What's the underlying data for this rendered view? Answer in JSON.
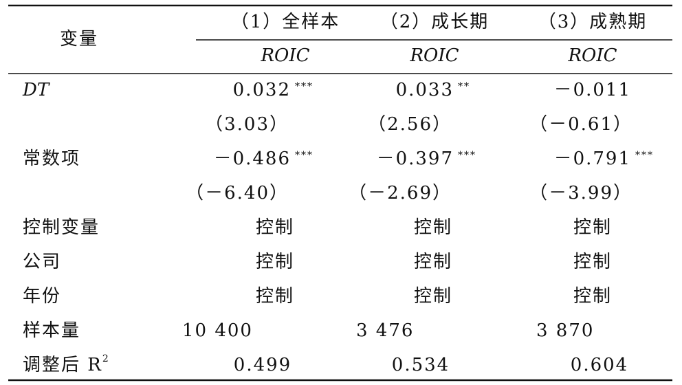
{
  "header": {
    "variable": "变量",
    "columns": [
      {
        "label": "（1）全样本",
        "dep": "ROIC"
      },
      {
        "label": "（2）成长期",
        "dep": "ROIC"
      },
      {
        "label": "（3）成熟期",
        "dep": "ROIC"
      }
    ]
  },
  "rows": [
    {
      "label": "DT",
      "cells": [
        {
          "value": "0.032",
          "stars": "***"
        },
        {
          "value": "0.033",
          "stars": "**"
        },
        {
          "value": "－0.011"
        }
      ]
    },
    {
      "cells": [
        {
          "value": "（3.03）"
        },
        {
          "value": "（2.56）"
        },
        {
          "value": "（－0.61）"
        }
      ]
    },
    {
      "label": "常数项",
      "cells": [
        {
          "value": "－0.486",
          "stars": "***"
        },
        {
          "value": "－0.397",
          "stars": "***"
        },
        {
          "value": "－0.791",
          "stars": "***"
        }
      ]
    },
    {
      "cells": [
        {
          "value": "（－6.40）"
        },
        {
          "value": "（－2.69）"
        },
        {
          "value": "（－3.99）"
        }
      ]
    },
    {
      "label": "控制变量",
      "cells": [
        {
          "value": "控制"
        },
        {
          "value": "控制"
        },
        {
          "value": "控制"
        }
      ]
    },
    {
      "label": "公司",
      "cells": [
        {
          "value": "控制"
        },
        {
          "value": "控制"
        },
        {
          "value": "控制"
        }
      ]
    },
    {
      "label": "年份",
      "cells": [
        {
          "value": "控制"
        },
        {
          "value": "控制"
        },
        {
          "value": "控制"
        }
      ]
    },
    {
      "label": "样本量",
      "cells": [
        {
          "value": "10 400"
        },
        {
          "value": "3 476"
        },
        {
          "value": "3 870"
        }
      ]
    },
    {
      "label": "调整后 R",
      "label_sup": "2",
      "cells": [
        {
          "value": "0.499"
        },
        {
          "value": "0.534"
        },
        {
          "value": "0.604"
        }
      ]
    }
  ]
}
